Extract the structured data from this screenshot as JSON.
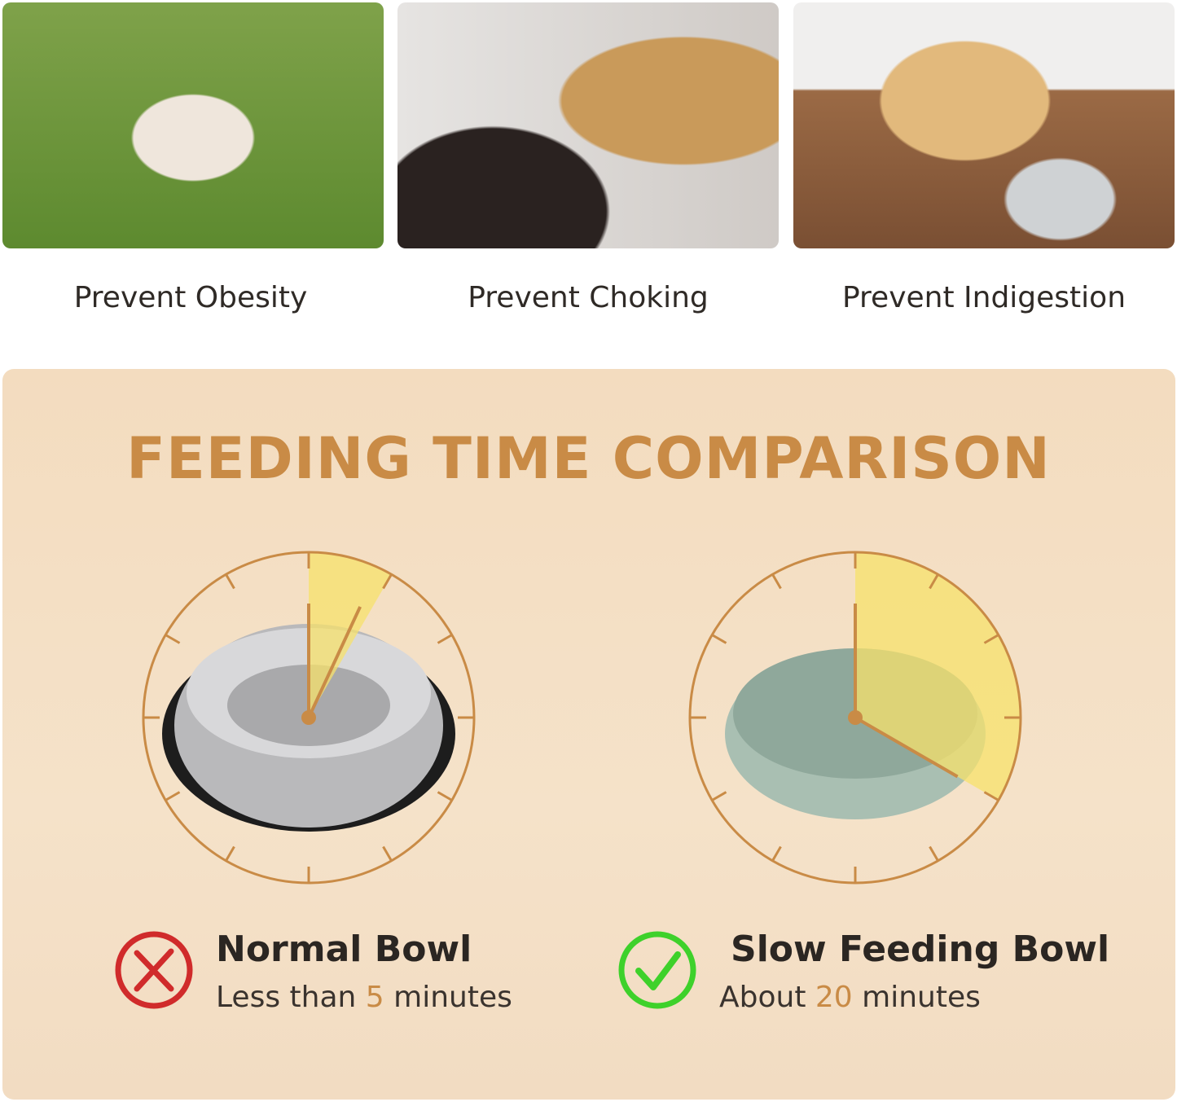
{
  "benefits": [
    {
      "label": "Prevent Obesity",
      "image": "pug-on-grass"
    },
    {
      "label": "Prevent Choking",
      "image": "golden-retriever-mouth-open"
    },
    {
      "label": "Prevent Indigestion",
      "image": "labrador-lying-by-bowl"
    }
  ],
  "comparison": {
    "title": "FEEDING TIME COMPARISON",
    "accent": "#c98b46",
    "wedge_color": "#f7e26b",
    "normal": {
      "name": "Normal Bowl",
      "prefix": "Less than ",
      "value": "5",
      "suffix": " minutes",
      "minutes": 5,
      "icon": "x-circle-icon",
      "icon_color": "#d02b2b"
    },
    "slow": {
      "name": "Slow Feeding Bowl",
      "prefix": "About ",
      "value": "20",
      "suffix": " minutes",
      "minutes": 20,
      "icon": "check-circle-icon",
      "icon_color": "#3ed12b"
    }
  }
}
